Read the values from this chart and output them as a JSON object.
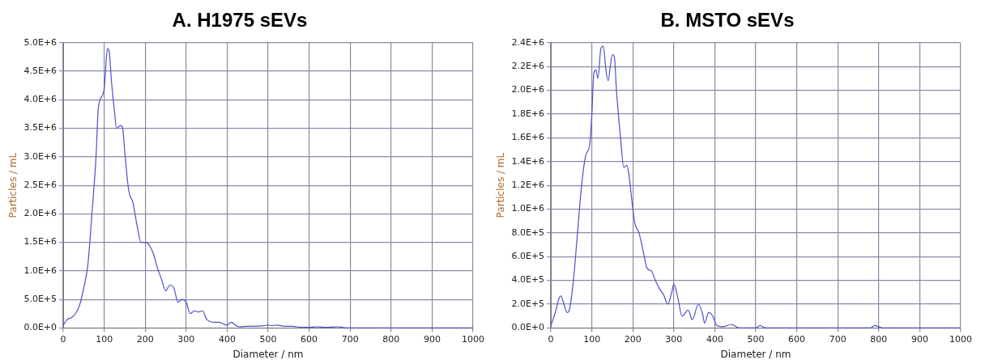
{
  "chart_data": [
    {
      "type": "line",
      "title": "A. H1975 sEVs",
      "xlabel": "Diameter / nm",
      "ylabel": "Particles / mL",
      "grid": true,
      "legend": false,
      "marker": "none",
      "line_style": "solid",
      "xlim": [
        0,
        1000
      ],
      "xticks": [
        0,
        100,
        200,
        300,
        400,
        500,
        600,
        700,
        800,
        900,
        1000
      ],
      "ylim": [
        0,
        5000000
      ],
      "yticks": [
        {
          "value": 0,
          "label": "0.0E+0"
        },
        {
          "value": 500000,
          "label": "5.0E+5"
        },
        {
          "value": 1000000,
          "label": "1.0E+6"
        },
        {
          "value": 1500000,
          "label": "1.5E+6"
        },
        {
          "value": 2000000,
          "label": "2.0E+6"
        },
        {
          "value": 2500000,
          "label": "2.5E+6"
        },
        {
          "value": 3000000,
          "label": "3.0E+6"
        },
        {
          "value": 3500000,
          "label": "3.5E+6"
        },
        {
          "value": 4000000,
          "label": "4.0E+6"
        },
        {
          "value": 4500000,
          "label": "4.5E+6"
        },
        {
          "value": 5000000,
          "label": "5.0E+6"
        }
      ],
      "series": [
        {
          "color": "#5050c8",
          "x": [
            0,
            10,
            20,
            30,
            40,
            50,
            60,
            70,
            80,
            85,
            90,
            100,
            105,
            108,
            112,
            118,
            125,
            130,
            140,
            145,
            150,
            160,
            170,
            180,
            190,
            200,
            210,
            220,
            230,
            240,
            250,
            260,
            270,
            280,
            290,
            300,
            310,
            320,
            330,
            340,
            350,
            370,
            380,
            390,
            400,
            410,
            420,
            430,
            450,
            470,
            490,
            500,
            510,
            520,
            540,
            560,
            580,
            600,
            620,
            640,
            670,
            690,
            1000
          ],
          "values": [
            50000,
            150000,
            180000,
            250000,
            400000,
            700000,
            1100000,
            2000000,
            3000000,
            3800000,
            4000000,
            4200000,
            4700000,
            4900000,
            4850000,
            4300000,
            3800000,
            3500000,
            3550000,
            3500000,
            3100000,
            2400000,
            2200000,
            1800000,
            1500000,
            1500000,
            1450000,
            1300000,
            1050000,
            850000,
            650000,
            750000,
            700000,
            450000,
            500000,
            450000,
            250000,
            300000,
            280000,
            300000,
            150000,
            100000,
            100000,
            70000,
            50000,
            100000,
            50000,
            20000,
            30000,
            30000,
            40000,
            50000,
            40000,
            50000,
            30000,
            30000,
            10000,
            10000,
            20000,
            10000,
            20000,
            0,
            0
          ]
        }
      ]
    },
    {
      "type": "line",
      "title": "B. MSTO sEVs",
      "xlabel": "Diameter / nm",
      "ylabel": "Particles / mL",
      "grid": true,
      "legend": false,
      "marker": "none",
      "line_style": "solid",
      "xlim": [
        0,
        1000
      ],
      "xticks": [
        0,
        100,
        200,
        300,
        400,
        500,
        600,
        700,
        800,
        900,
        1000
      ],
      "ylim": [
        0,
        2400000
      ],
      "yticks": [
        {
          "value": 0,
          "label": "0.0E+0"
        },
        {
          "value": 200000,
          "label": "2.0E+5"
        },
        {
          "value": 400000,
          "label": "4.0E+5"
        },
        {
          "value": 600000,
          "label": "6.0E+5"
        },
        {
          "value": 800000,
          "label": "8.0E+5"
        },
        {
          "value": 1000000,
          "label": "1.0E+6"
        },
        {
          "value": 1200000,
          "label": "1.2E+6"
        },
        {
          "value": 1400000,
          "label": "1.4E+6"
        },
        {
          "value": 1600000,
          "label": "1.6E+6"
        },
        {
          "value": 1800000,
          "label": "1.8E+6"
        },
        {
          "value": 2000000,
          "label": "2.0E+6"
        },
        {
          "value": 2200000,
          "label": "2.2E+6"
        },
        {
          "value": 2400000,
          "label": "2.4E+6"
        }
      ],
      "series": [
        {
          "color": "#5050c8",
          "x": [
            0,
            10,
            20,
            25,
            30,
            40,
            45,
            55,
            65,
            75,
            85,
            95,
            100,
            105,
            110,
            115,
            122,
            128,
            135,
            140,
            145,
            150,
            155,
            160,
            170,
            178,
            185,
            190,
            200,
            205,
            215,
            225,
            235,
            245,
            255,
            265,
            275,
            285,
            295,
            300,
            310,
            320,
            335,
            345,
            360,
            370,
            375,
            385,
            395,
            405,
            420,
            440,
            460,
            500,
            510,
            525,
            780,
            790,
            800,
            810,
            1000
          ],
          "values": [
            20000,
            120000,
            250000,
            270000,
            220000,
            130000,
            150000,
            400000,
            800000,
            1200000,
            1450000,
            1550000,
            1800000,
            2150000,
            2170000,
            2100000,
            2350000,
            2370000,
            2150000,
            2080000,
            2200000,
            2300000,
            2280000,
            2000000,
            1600000,
            1350000,
            1370000,
            1300000,
            1000000,
            880000,
            800000,
            650000,
            500000,
            480000,
            400000,
            330000,
            280000,
            200000,
            300000,
            370000,
            250000,
            100000,
            150000,
            70000,
            200000,
            120000,
            40000,
            130000,
            100000,
            20000,
            10000,
            30000,
            0,
            0,
            20000,
            0,
            0,
            20000,
            10000,
            0,
            0
          ]
        }
      ]
    }
  ]
}
